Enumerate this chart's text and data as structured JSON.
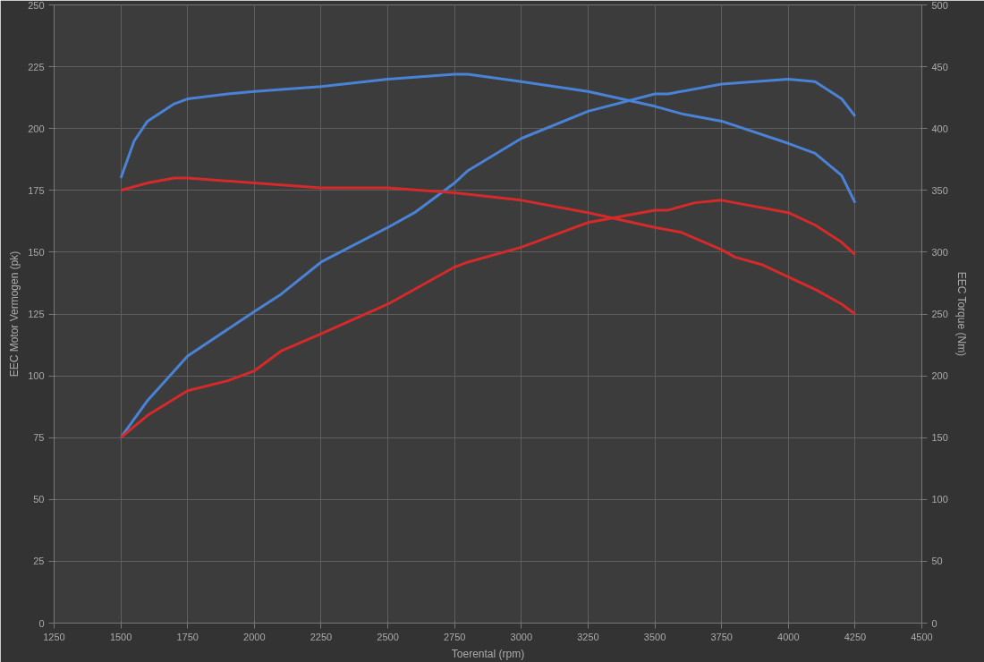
{
  "chart_data": {
    "type": "line",
    "xlabel": "Toerental (rpm)",
    "ylabel": "EEC Motor Vermogen (pk)",
    "y2label": "EEC Torque (Nm)",
    "xlim": [
      1250,
      4500
    ],
    "xticks": [
      1250,
      1500,
      1750,
      2000,
      2250,
      2500,
      2750,
      3000,
      3250,
      3500,
      3750,
      4000,
      4250,
      4500
    ],
    "ylim": [
      0,
      250
    ],
    "yticks": [
      0,
      25,
      50,
      75,
      100,
      125,
      150,
      175,
      200,
      225,
      250
    ],
    "y2lim": [
      0,
      500
    ],
    "y2ticks": [
      0,
      50,
      100,
      150,
      200,
      250,
      300,
      350,
      400,
      450,
      500
    ],
    "grid": true,
    "series": [
      {
        "color": "#4a82d6",
        "x": [
          1500,
          1600,
          1750,
          2000,
          2100,
          2250,
          2500,
          2600,
          2750,
          2800,
          3000,
          3250,
          3500,
          3550,
          3750,
          4000,
          4100,
          4200,
          4250
        ],
        "values": [
          75,
          90,
          108,
          126,
          133,
          146,
          160,
          166,
          178,
          183,
          196,
          207,
          214,
          214,
          218,
          220,
          219,
          212,
          205
        ]
      },
      {
        "color": "#d42a2a",
        "x": [
          1500,
          1600,
          1750,
          1900,
          2000,
          2100,
          2250,
          2500,
          2750,
          2800,
          3000,
          3250,
          3500,
          3550,
          3650,
          3750,
          3800,
          4000,
          4100,
          4200,
          4250
        ],
        "values": [
          75,
          84,
          94,
          98,
          102,
          110,
          117,
          129,
          144,
          146,
          152,
          162,
          167,
          167,
          170,
          171,
          170,
          166,
          161,
          154,
          149
        ]
      },
      {
        "color": "#4a82d6",
        "axis": "y2",
        "x": [
          1500,
          1550,
          1600,
          1700,
          1750,
          1900,
          2000,
          2250,
          2500,
          2750,
          2800,
          3000,
          3250,
          3500,
          3600,
          3750,
          4000,
          4100,
          4200,
          4250
        ],
        "values": [
          360,
          390,
          406,
          420,
          424,
          428,
          430,
          434,
          440,
          444,
          444,
          438,
          430,
          418,
          412,
          406,
          388,
          380,
          362,
          340
        ]
      },
      {
        "color": "#d42a2a",
        "axis": "y2",
        "x": [
          1500,
          1600,
          1700,
          1750,
          2000,
          2250,
          2500,
          2750,
          3000,
          3250,
          3500,
          3600,
          3750,
          3800,
          3900,
          4000,
          4100,
          4200,
          4250
        ],
        "values": [
          350,
          356,
          360,
          360,
          356,
          352,
          352,
          348,
          342,
          332,
          320,
          316,
          302,
          296,
          290,
          280,
          270,
          258,
          250
        ]
      }
    ]
  }
}
